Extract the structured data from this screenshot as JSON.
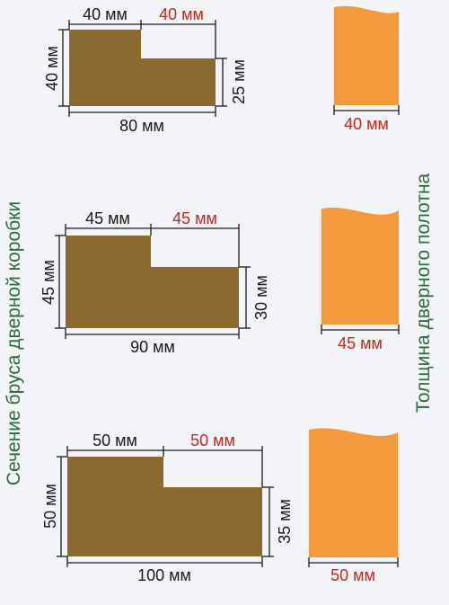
{
  "side_labels": {
    "left": "Сечение бруса дверной коробки",
    "right": "Толщина дверного полотна"
  },
  "colors": {
    "background": "#f2f4f8",
    "profile_fill": "#8a6a2e",
    "panel_fill": "#f29a3c",
    "dimension_black": "#1a1a1a",
    "dimension_red": "#c0281e",
    "side_label_green": "#2e6b3a"
  },
  "profiles": [
    {
      "top_left": "40 мм",
      "top_right": "40 мм",
      "left": "40 мм",
      "right": "25 мм",
      "bottom": "80 мм",
      "panel_thickness": "40 мм"
    },
    {
      "top_left": "45 мм",
      "top_right": "45 мм",
      "left": "45 мм",
      "right": "30 мм",
      "bottom": "90 мм",
      "panel_thickness": "45 мм"
    },
    {
      "top_left": "50 мм",
      "top_right": "50 мм",
      "left": "50 мм",
      "right": "35 мм",
      "bottom": "100 мм",
      "panel_thickness": "50 мм"
    }
  ]
}
